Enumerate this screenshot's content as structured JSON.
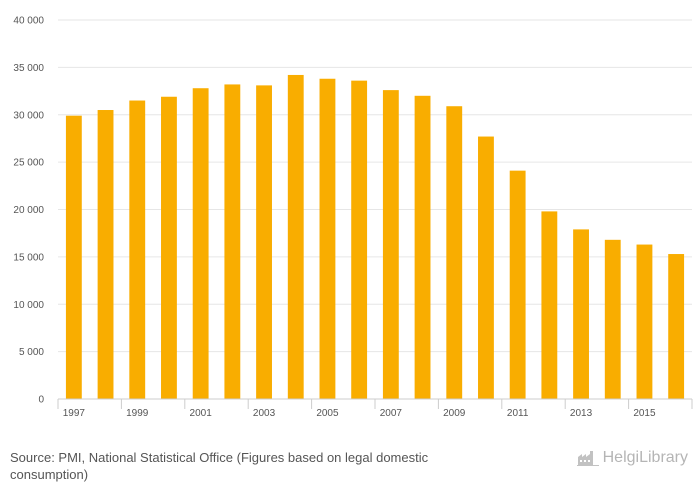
{
  "chart_data": {
    "type": "bar",
    "categories": [
      "1997",
      "1998",
      "1999",
      "2000",
      "2001",
      "2002",
      "2003",
      "2004",
      "2005",
      "2006",
      "2007",
      "2008",
      "2009",
      "2010",
      "2011",
      "2012",
      "2013",
      "2014",
      "2015",
      "2016"
    ],
    "x_tick_labels": [
      "1997",
      "1999",
      "2001",
      "2003",
      "2005",
      "2007",
      "2009",
      "2011",
      "2013",
      "2015"
    ],
    "values": [
      29900,
      30500,
      31500,
      31900,
      32800,
      33200,
      33100,
      34200,
      33800,
      33600,
      32600,
      32000,
      30900,
      27700,
      24100,
      19800,
      17900,
      16800,
      16300,
      15300
    ],
    "ylim": [
      0,
      40000
    ],
    "y_ticks": [
      0,
      5000,
      10000,
      15000,
      20000,
      25000,
      30000,
      35000,
      40000
    ],
    "y_tick_labels": [
      "0",
      "5 000",
      "10 000",
      "15 000",
      "20 000",
      "25 000",
      "30 000",
      "35 000",
      "40 000"
    ],
    "bar_color": "#f9ad00",
    "grid": true,
    "legend": "none"
  },
  "footer": {
    "source": "Source: PMI, National Statistical Office (Figures based on legal domestic consumption)",
    "brand_name": "HelgiLibrary",
    "brand_part1": "Helgi",
    "brand_part2": "Library"
  }
}
